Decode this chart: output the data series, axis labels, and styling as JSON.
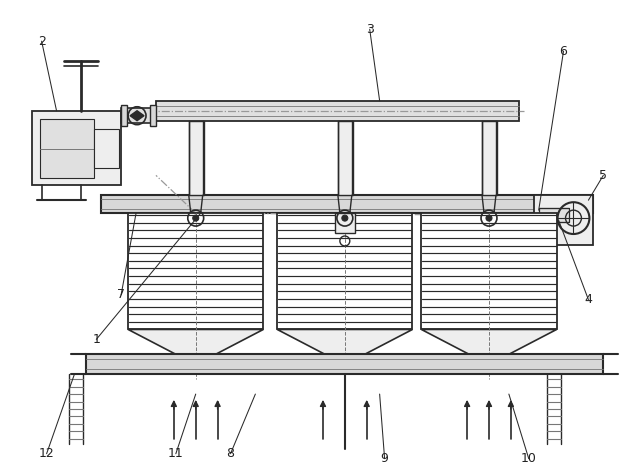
{
  "bg": "#ffffff",
  "lc": "#2a2a2a",
  "llc": "#777777",
  "ddc": "#999999",
  "gray_fill": "#d8d8d8",
  "light_fill": "#eeeeee",
  "pipe_fill": "#e0e0e0",
  "figsize": [
    6.35,
    4.74
  ],
  "dpi": 100
}
